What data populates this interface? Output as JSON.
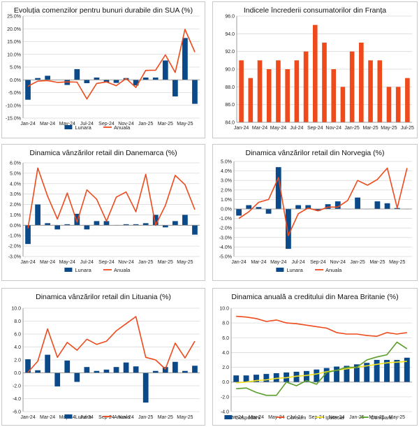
{
  "colors": {
    "bar": "#0b4a8a",
    "line": "#ee4a1c",
    "ipotecar": "#f2e31f",
    "companii": "#5a9d2a",
    "grid": "#d9d9d9",
    "axis": "#868686"
  },
  "chart_data": [
    {
      "type": "bar+line",
      "title": "Evoluția comenzilor pentru bunuri durabile din SUA (%)",
      "categories": [
        "Jan-24",
        "Feb-24",
        "Mar-24",
        "Apr-24",
        "May-24",
        "Jun-24",
        "Jul-24",
        "Aug-24",
        "Sep-24",
        "Oct-24",
        "Nov-24",
        "Dec-24",
        "Jan-25",
        "Feb-25",
        "Mar-25",
        "Apr-25",
        "May-25",
        "Jun-25"
      ],
      "x_tick_labels": [
        "Jan-24",
        "Mar-24",
        "May-24",
        "Jul-24",
        "Sep-24",
        "Nov-24",
        "Jan-25",
        "Mar-25",
        "May-25"
      ],
      "ylim": [
        -15,
        25
      ],
      "ytick_step": 5,
      "ytick_format": "pct1",
      "series": [
        {
          "name": "Lunara",
          "kind": "bar",
          "values": [
            -7.8,
            0.7,
            1.6,
            0.0,
            -2.0,
            4.2,
            -1.3,
            0.9,
            -1.0,
            -1.2,
            0.7,
            -2.2,
            0.9,
            0.9,
            7.6,
            -6.5,
            16.4,
            -9.4
          ]
        },
        {
          "name": "Anuala",
          "kind": "line",
          "values": [
            -2.5,
            -0.5,
            -0.3,
            -1.0,
            -0.8,
            -0.9,
            -7.5,
            -1.4,
            -0.8,
            -2.3,
            0.5,
            -3.0,
            3.7,
            3.8,
            9.8,
            2.9,
            19.8,
            10.9
          ]
        }
      ]
    },
    {
      "type": "bar",
      "title": "Indicele încrederii consumatorilor din Franța",
      "categories": [
        "Jan-24",
        "Feb-24",
        "Mar-24",
        "Apr-24",
        "May-24",
        "Jun-24",
        "Jul-24",
        "Aug-24",
        "Sep-24",
        "Oct-24",
        "Nov-24",
        "Dec-24",
        "Jan-25",
        "Feb-25",
        "Mar-25",
        "Apr-25",
        "May-25",
        "Jun-25",
        "Jul-25"
      ],
      "x_tick_labels": [
        "Jan-24",
        "Mar-24",
        "May-24",
        "Jul-24",
        "Sep-24",
        "Nov-24",
        "Jan-25",
        "Mar-25",
        "May-25",
        "Jul-25"
      ],
      "ylim": [
        84,
        96
      ],
      "ytick_step": 2,
      "ytick_format": "dec1",
      "series": [
        {
          "name": "Indice",
          "kind": "bar",
          "color": "#ee4a1c",
          "values": [
            91,
            89,
            91,
            90,
            91,
            90,
            91,
            92,
            95,
            93,
            90,
            88,
            92,
            93,
            91,
            91,
            88,
            88,
            89
          ]
        }
      ]
    },
    {
      "type": "bar+line",
      "title": "Dinamica vânzărilor retail din Danemarca (%)",
      "categories": [
        "Jan-24",
        "Feb-24",
        "Mar-24",
        "Apr-24",
        "May-24",
        "Jun-24",
        "Jul-24",
        "Aug-24",
        "Sep-24",
        "Oct-24",
        "Nov-24",
        "Dec-24",
        "Jan-25",
        "Feb-25",
        "Mar-25",
        "Apr-25",
        "May-25",
        "Jun-25"
      ],
      "x_tick_labels": [
        "Jan-24",
        "Mar-24",
        "May-24",
        "Jul-24",
        "Sep-24",
        "Nov-24",
        "Jan-25",
        "Mar-25",
        "May-25"
      ],
      "ylim": [
        -3,
        6
      ],
      "ytick_step": 1,
      "ytick_format": "pct1",
      "series": [
        {
          "name": "Lunara",
          "kind": "bar",
          "values": [
            -1.8,
            2.0,
            0.2,
            -0.4,
            0.1,
            1.1,
            -0.4,
            0.4,
            0.4,
            0.0,
            0.1,
            0.1,
            0.2,
            1.0,
            -0.2,
            0.4,
            1.0,
            -0.9
          ]
        },
        {
          "name": "Anuala",
          "kind": "line",
          "values": [
            -0.3,
            5.5,
            2.8,
            0.6,
            3.1,
            0.3,
            3.4,
            2.5,
            0.4,
            2.7,
            3.2,
            1.3,
            4.9,
            0.0,
            1.9,
            4.8,
            3.9,
            1.5
          ]
        }
      ]
    },
    {
      "type": "bar+line",
      "title": "Dinamica vânzărilor retail din Norvegia (%)",
      "categories": [
        "Jan-24",
        "Feb-24",
        "Mar-24",
        "Apr-24",
        "May-24",
        "Jun-24",
        "Jul-24",
        "Aug-24",
        "Sep-24",
        "Oct-24",
        "Nov-24",
        "Dec-24",
        "Jan-25",
        "Feb-25",
        "Mar-25",
        "Apr-25",
        "May-25",
        "Jun-25"
      ],
      "x_tick_labels": [
        "Jan-24",
        "Mar-24",
        "May-24",
        "Jul-24",
        "Sep-24",
        "Nov-24",
        "Jan-25",
        "Mar-25",
        "May-25"
      ],
      "ylim": [
        -5,
        5
      ],
      "ytick_step": 1,
      "ytick_format": "pct1",
      "series": [
        {
          "name": "Lunara",
          "kind": "bar",
          "values": [
            -0.7,
            0.4,
            0.2,
            -0.5,
            4.4,
            -4.2,
            0.4,
            0.4,
            -0.2,
            0.5,
            0.8,
            0.0,
            1.2,
            0.0,
            0.8,
            0.6,
            0.1,
            0.0
          ]
        },
        {
          "name": "Anuala",
          "kind": "line",
          "values": [
            -1.0,
            -0.3,
            0.7,
            1.0,
            3.3,
            -2.8,
            -0.5,
            0.1,
            -0.2,
            0.2,
            0.2,
            0.9,
            3.0,
            2.5,
            3.1,
            4.3,
            0.1,
            4.3
          ]
        }
      ]
    },
    {
      "type": "bar+line",
      "title": "Dinamica vânzărilor retail din Lituania (%)",
      "categories": [
        "Jan-24",
        "Feb-24",
        "Mar-24",
        "Apr-24",
        "May-24",
        "Jun-24",
        "Jul-24",
        "Aug-24",
        "Sep-24",
        "Oct-24",
        "Nov-24",
        "Dec-24",
        "Jan-25",
        "Feb-25",
        "Mar-25",
        "Apr-25",
        "May-25",
        "Jun-25"
      ],
      "x_tick_labels": [
        "Jan-24",
        "Mar-24",
        "May-24",
        "Jul-24",
        "Sep-24",
        "Nov-24",
        "Jan-25",
        "Mar-25",
        "May-25"
      ],
      "ylim": [
        -6,
        10
      ],
      "ytick_step": 2,
      "ytick_format": "dec1",
      "series": [
        {
          "name": "Lunara",
          "kind": "bar",
          "values": [
            2.1,
            0.4,
            2.8,
            -2.1,
            1.9,
            -1.4,
            0.9,
            0.3,
            0.5,
            0.9,
            1.6,
            1.0,
            -4.6,
            0.3,
            0.9,
            1.7,
            0.3,
            1.1
          ]
        },
        {
          "name": "Anuala",
          "kind": "line",
          "values": [
            0.1,
            1.8,
            6.8,
            2.4,
            4.7,
            3.5,
            5.2,
            4.4,
            4.9,
            6.5,
            7.6,
            8.7,
            2.4,
            2.0,
            0.6,
            4.6,
            2.3,
            4.9
          ]
        }
      ]
    },
    {
      "type": "bar+line",
      "title": "Dinamica anuală a creditului din Marea Britanie (%)",
      "categories": [
        "Jan-24",
        "Feb-24",
        "Mar-24",
        "Apr-24",
        "May-24",
        "Jun-24",
        "Jul-24",
        "Aug-24",
        "Sep-24",
        "Oct-24",
        "Nov-24",
        "Dec-24",
        "Jan-25",
        "Feb-25",
        "Mar-25",
        "Apr-25",
        "May-25",
        "Jun-25"
      ],
      "x_tick_labels": [
        "Jan-24",
        "Mar-24",
        "May-24",
        "Jul-24",
        "Sep-24",
        "Nov-24",
        "Jan-25",
        "Mar-25",
        "May-25"
      ],
      "ylim": [
        -4,
        10
      ],
      "ytick_step": 2,
      "ytick_format": "dec1",
      "series": [
        {
          "name": "Gospodarii",
          "kind": "bar",
          "values": [
            0.9,
            0.9,
            1.0,
            1.1,
            1.2,
            1.3,
            1.4,
            1.5,
            1.7,
            1.9,
            2.1,
            2.2,
            2.4,
            2.6,
            3.0,
            3.0,
            3.0,
            3.3
          ]
        },
        {
          "name": "Consum",
          "kind": "line",
          "color": "#ee4a1c",
          "values": [
            8.9,
            8.8,
            8.6,
            8.2,
            8.4,
            8.0,
            7.9,
            7.7,
            7.5,
            7.3,
            6.7,
            6.5,
            6.5,
            6.3,
            6.2,
            6.7,
            6.5,
            6.7
          ]
        },
        {
          "name": "Ipotecar",
          "kind": "line",
          "color": "#f2e31f",
          "values": [
            -0.1,
            0.0,
            0.2,
            0.3,
            0.5,
            0.6,
            0.8,
            0.9,
            1.1,
            1.4,
            1.6,
            1.8,
            2.0,
            2.2,
            2.4,
            2.6,
            2.7,
            2.8
          ]
        },
        {
          "name": "Companii",
          "kind": "line",
          "color": "#5a9d2a",
          "values": [
            -0.9,
            -0.8,
            -1.4,
            -1.8,
            -1.8,
            0.0,
            -0.5,
            0.2,
            -0.3,
            1.3,
            1.6,
            2.0,
            2.0,
            3.0,
            3.4,
            3.7,
            5.4,
            4.5
          ]
        }
      ]
    }
  ]
}
